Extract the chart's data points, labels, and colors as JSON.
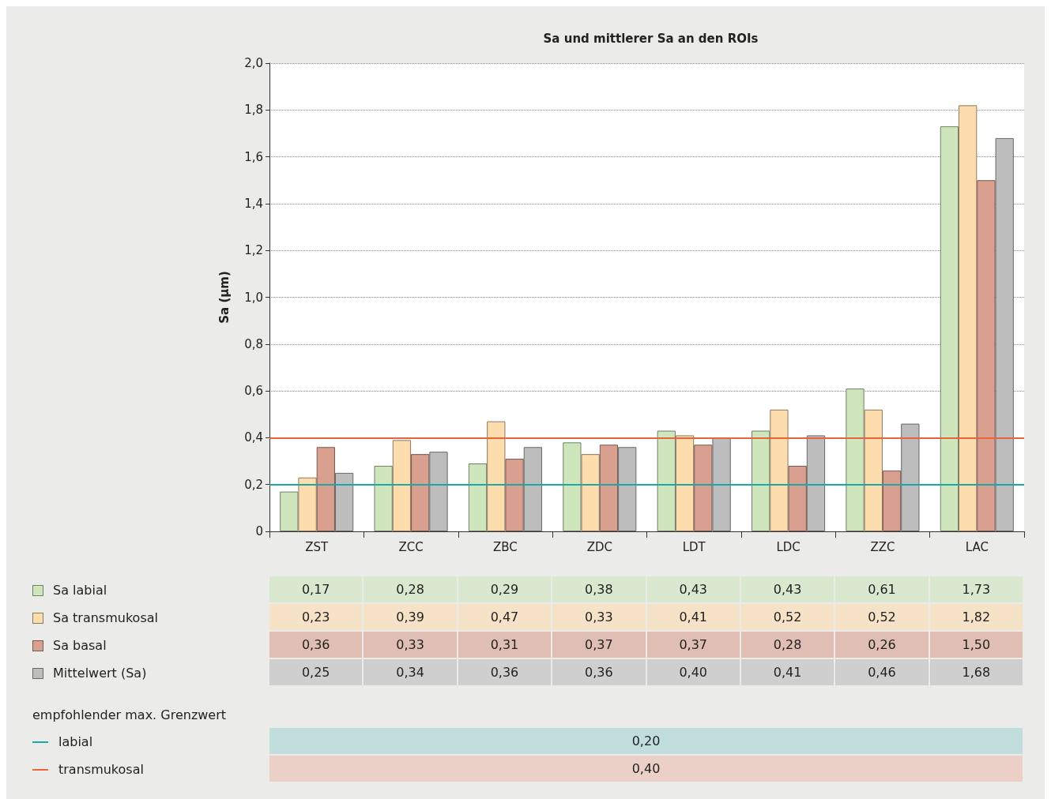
{
  "chart_data": {
    "type": "bar",
    "title": "Sa und mittlerer Sa an den ROIs",
    "ylabel": "Sa (µm)",
    "categories": [
      "ZST",
      "ZCC",
      "ZBC",
      "ZDC",
      "LDT",
      "LDC",
      "ZZC",
      "LAC"
    ],
    "series": [
      {
        "name": "Sa labial",
        "color": "#cfe6bd",
        "values": [
          0.17,
          0.28,
          0.29,
          0.38,
          0.43,
          0.43,
          0.61,
          1.73
        ],
        "value_labels": [
          "0,17",
          "0,28",
          "0,29",
          "0,38",
          "0,43",
          "0,43",
          "0,61",
          "1,73"
        ]
      },
      {
        "name": "Sa transmukosal",
        "color": "#fddcae",
        "values": [
          0.23,
          0.39,
          0.47,
          0.33,
          0.41,
          0.52,
          0.52,
          1.82
        ],
        "value_labels": [
          "0,23",
          "0,39",
          "0,47",
          "0,33",
          "0,41",
          "0,52",
          "0,52",
          "1,82"
        ]
      },
      {
        "name": "Sa basal",
        "color": "#d9a090",
        "values": [
          0.36,
          0.33,
          0.31,
          0.37,
          0.37,
          0.28,
          0.26,
          1.5
        ],
        "value_labels": [
          "0,36",
          "0,33",
          "0,31",
          "0,37",
          "0,37",
          "0,28",
          "0,26",
          "1,50"
        ]
      },
      {
        "name": "Mittelwert (Sa)",
        "color": "#bdbdbd",
        "values": [
          0.25,
          0.34,
          0.36,
          0.36,
          0.4,
          0.41,
          0.46,
          1.68
        ],
        "value_labels": [
          "0,25",
          "0,34",
          "0,36",
          "0,36",
          "0,40",
          "0,41",
          "0,46",
          "1,68"
        ]
      }
    ],
    "ylim": [
      0,
      2
    ],
    "yticks": [
      0,
      {
        "value": 0.2,
        "label": "0,2"
      },
      {
        "value": 0.4,
        "label": "0,4"
      },
      {
        "value": 0.6,
        "label": "0,6"
      },
      {
        "value": 0.8,
        "label": "0,8"
      },
      {
        "value": 1,
        "label": "1,0"
      },
      {
        "value": 1.2,
        "label": "1,2"
      },
      {
        "value": 1.4,
        "label": "1,4"
      },
      {
        "value": 1.6,
        "label": "1,6"
      },
      {
        "value": 1.8,
        "label": "1,8"
      },
      {
        "value": 2,
        "label": "2,0"
      }
    ],
    "grid": "y",
    "legend": "bottom left",
    "annotations": [
      "0,20",
      "0,40"
    ],
    "legend_title": "empfohlender max. Grenzwert",
    "ref_lines": [
      {
        "axis": "y",
        "value": 0.2,
        "label": "labial",
        "color": "#1aa8a8"
      },
      {
        "axis": "y",
        "value": 0.4,
        "label": "transmukosal",
        "color": "#e8643c"
      }
    ]
  }
}
